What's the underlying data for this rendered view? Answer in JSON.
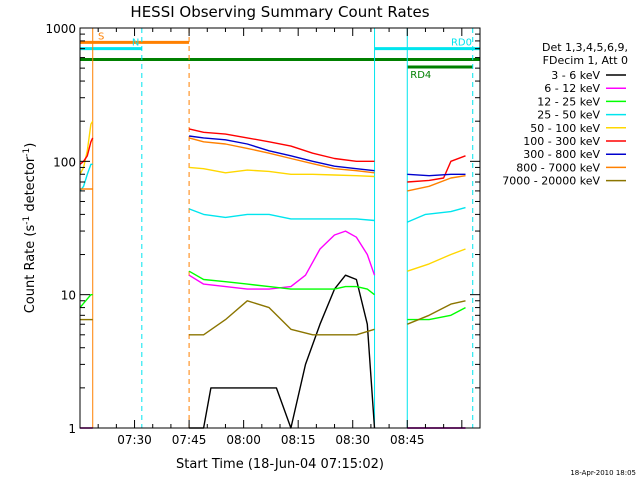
{
  "chart_data": {
    "type": "line",
    "title": "HESSI Observing Summary Count Rates",
    "xlabel": "Start Time (18-Jun-04 07:15:02)",
    "ylabel_main": "Count Rate (s",
    "ylabel_sup1": "-1",
    "ylabel_mid": " detector",
    "ylabel_sup2": "-1",
    "ylabel_end": ")",
    "y_scale": "log",
    "ylim": [
      1,
      1000
    ],
    "xlim_minutes_after_0715": [
      0,
      110
    ],
    "x_ticks": [
      {
        "label": "07:30",
        "min": 15
      },
      {
        "label": "07:45",
        "min": 30
      },
      {
        "label": "08:00",
        "min": 45
      },
      {
        "label": "08:15",
        "min": 60
      },
      {
        "label": "08:30",
        "min": 75
      },
      {
        "label": "08:45",
        "min": 90
      }
    ],
    "y_ticks": [
      {
        "label": "1",
        "value": 1
      },
      {
        "label": "10",
        "value": 10
      },
      {
        "label": "100",
        "value": 100
      },
      {
        "label": "1000",
        "value": 1000
      }
    ],
    "legend_header": [
      "Det 1,3,4,5,6,9,",
      "FDecim 1, Att 0"
    ],
    "legend_placement": "right",
    "footer_date": "18-Apr-2010 18:05",
    "flags": [
      {
        "label": "S",
        "color": "#ff8000",
        "y": 780,
        "start": 0,
        "end": 30
      },
      {
        "label": "N",
        "color": "#00e5ee",
        "y": 700,
        "start": 0,
        "end": 17
      },
      {
        "label": "RD0",
        "color": "#00e5ee",
        "y": 700,
        "start": 81,
        "end": 110
      },
      {
        "label": "",
        "color": "#008000",
        "y": 580,
        "start": 0,
        "end": 110
      },
      {
        "label": "RD4",
        "color": "#008000",
        "y": 510,
        "start": 90,
        "end": 108
      }
    ],
    "markers": [
      {
        "color": "#ff8000",
        "style": "solid",
        "min": 3.5
      },
      {
        "color": "#00e5ee",
        "style": "dashed",
        "min": 17
      },
      {
        "color": "#ff8000",
        "style": "dashed",
        "min": 30
      },
      {
        "color": "#00e5ee",
        "style": "solid",
        "min": 81
      },
      {
        "color": "#00e5ee",
        "style": "solid",
        "min": 90
      },
      {
        "color": "#00e5ee",
        "style": "dashed",
        "min": 108
      }
    ],
    "gaps_minutes": [
      [
        3.5,
        30
      ],
      [
        81,
        90
      ]
    ],
    "series": [
      {
        "name": "3 - 6 keV",
        "color": "#000000",
        "points": [
          [
            0,
            1
          ],
          [
            3.5,
            1
          ],
          [
            30,
            1
          ],
          [
            34,
            1
          ],
          [
            36,
            2
          ],
          [
            42,
            2
          ],
          [
            48,
            2
          ],
          [
            54,
            2
          ],
          [
            58,
            1
          ],
          [
            62,
            3
          ],
          [
            66,
            6
          ],
          [
            70,
            11
          ],
          [
            73,
            14
          ],
          [
            76,
            13
          ],
          [
            79,
            6
          ],
          [
            81,
            1
          ],
          [
            90,
            1
          ],
          [
            106,
            1
          ]
        ]
      },
      {
        "name": "6 - 12 keV",
        "color": "#ff00ff",
        "points": [
          [
            0,
            1
          ],
          [
            3.5,
            1
          ],
          [
            30,
            14
          ],
          [
            34,
            12
          ],
          [
            40,
            11.5
          ],
          [
            46,
            11
          ],
          [
            52,
            11
          ],
          [
            58,
            11.5
          ],
          [
            62,
            14
          ],
          [
            66,
            22
          ],
          [
            70,
            28
          ],
          [
            73,
            30
          ],
          [
            76,
            27
          ],
          [
            79,
            20
          ],
          [
            81,
            14
          ],
          [
            90,
            1
          ],
          [
            106,
            1
          ]
        ]
      },
      {
        "name": "12 - 25 keV",
        "color": "#00ff00",
        "points": [
          [
            0,
            8
          ],
          [
            3,
            10
          ],
          [
            3.5,
            10
          ],
          [
            30,
            15
          ],
          [
            34,
            13
          ],
          [
            40,
            12.5
          ],
          [
            46,
            12
          ],
          [
            52,
            11.5
          ],
          [
            58,
            11
          ],
          [
            62,
            11
          ],
          [
            66,
            11
          ],
          [
            70,
            11
          ],
          [
            73,
            11.5
          ],
          [
            76,
            11.5
          ],
          [
            79,
            11
          ],
          [
            81,
            10
          ],
          [
            90,
            6.5
          ],
          [
            96,
            6.5
          ],
          [
            102,
            7
          ],
          [
            106,
            8
          ]
        ]
      },
      {
        "name": "25 - 50 keV",
        "color": "#00e5ee",
        "points": [
          [
            0,
            60
          ],
          [
            1,
            65
          ],
          [
            2,
            80
          ],
          [
            3,
            95
          ],
          [
            3.5,
            95
          ],
          [
            30,
            44
          ],
          [
            34,
            40
          ],
          [
            40,
            38
          ],
          [
            46,
            40
          ],
          [
            52,
            40
          ],
          [
            58,
            37
          ],
          [
            64,
            37
          ],
          [
            70,
            37
          ],
          [
            76,
            37
          ],
          [
            81,
            36
          ],
          [
            90,
            35
          ],
          [
            95,
            40
          ],
          [
            102,
            42
          ],
          [
            106,
            45
          ]
        ]
      },
      {
        "name": "50 - 100 keV",
        "color": "#ffd700",
        "points": [
          [
            0,
            80
          ],
          [
            1,
            90
          ],
          [
            2,
            120
          ],
          [
            3,
            190
          ],
          [
            3.5,
            200
          ],
          [
            30,
            90
          ],
          [
            34,
            88
          ],
          [
            40,
            82
          ],
          [
            46,
            86
          ],
          [
            52,
            84
          ],
          [
            58,
            80
          ],
          [
            64,
            80
          ],
          [
            70,
            79
          ],
          [
            76,
            78
          ],
          [
            81,
            77
          ],
          [
            90,
            15
          ],
          [
            96,
            17
          ],
          [
            102,
            20
          ],
          [
            106,
            22
          ]
        ]
      },
      {
        "name": "100 - 300 keV",
        "color": "#ff0000",
        "points": [
          [
            0,
            95
          ],
          [
            1,
            100
          ],
          [
            2,
            110
          ],
          [
            3,
            140
          ],
          [
            3.5,
            150
          ],
          [
            30,
            175
          ],
          [
            34,
            165
          ],
          [
            40,
            160
          ],
          [
            46,
            150
          ],
          [
            52,
            140
          ],
          [
            58,
            130
          ],
          [
            64,
            115
          ],
          [
            70,
            105
          ],
          [
            76,
            100
          ],
          [
            81,
            100
          ],
          [
            90,
            70
          ],
          [
            96,
            72
          ],
          [
            100,
            75
          ],
          [
            102,
            100
          ],
          [
            106,
            110
          ]
        ]
      },
      {
        "name": "300 - 800 keV",
        "color": "#0000cd",
        "points": [
          [
            30,
            155
          ],
          [
            34,
            150
          ],
          [
            40,
            145
          ],
          [
            46,
            135
          ],
          [
            52,
            120
          ],
          [
            58,
            110
          ],
          [
            64,
            100
          ],
          [
            70,
            92
          ],
          [
            76,
            88
          ],
          [
            81,
            85
          ],
          [
            90,
            80
          ],
          [
            96,
            78
          ],
          [
            102,
            80
          ],
          [
            106,
            80
          ]
        ]
      },
      {
        "name": "800 - 7000 keV",
        "color": "#ff8000",
        "points": [
          [
            0,
            62
          ],
          [
            1,
            62
          ],
          [
            3,
            62
          ],
          [
            3.5,
            62
          ],
          [
            30,
            150
          ],
          [
            34,
            140
          ],
          [
            40,
            135
          ],
          [
            46,
            125
          ],
          [
            52,
            115
          ],
          [
            58,
            105
          ],
          [
            64,
            96
          ],
          [
            70,
            88
          ],
          [
            76,
            85
          ],
          [
            81,
            82
          ],
          [
            90,
            60
          ],
          [
            96,
            65
          ],
          [
            102,
            75
          ],
          [
            106,
            78
          ]
        ]
      },
      {
        "name": "7000 - 20000 keV",
        "color": "#8b7500",
        "points": [
          [
            0,
            6.5
          ],
          [
            3,
            6.5
          ],
          [
            3.5,
            6.5
          ],
          [
            30,
            5
          ],
          [
            34,
            5
          ],
          [
            40,
            6.5
          ],
          [
            46,
            9
          ],
          [
            52,
            8
          ],
          [
            58,
            5.5
          ],
          [
            64,
            5
          ],
          [
            70,
            5
          ],
          [
            76,
            5
          ],
          [
            81,
            5.5
          ],
          [
            90,
            6
          ],
          [
            96,
            7
          ],
          [
            102,
            8.5
          ],
          [
            106,
            9
          ]
        ]
      }
    ]
  }
}
